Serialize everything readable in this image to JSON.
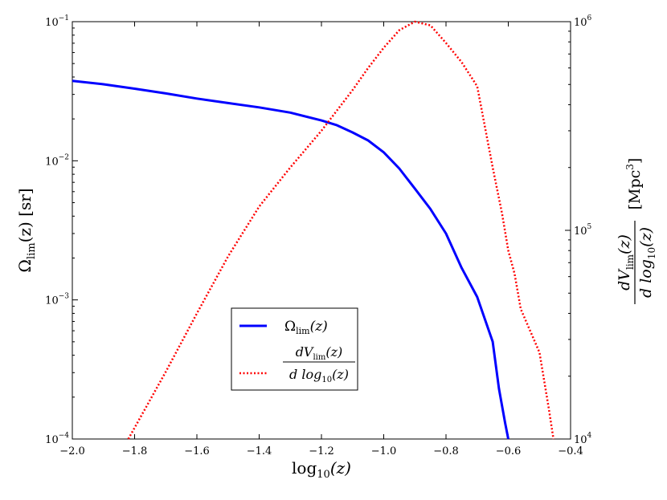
{
  "chart_data": {
    "type": "line",
    "title": "",
    "xlabel": "log₁₀(z)",
    "ylabel_left": "Ω_lim(z) [sr]",
    "ylabel_right": "dV_lim(z) / d log₁₀(z) [Mpc³]",
    "xlim": [
      -2.0,
      -0.4
    ],
    "ylim_left": [
      0.0001,
      0.1
    ],
    "ylim_right": [
      10000,
      1000000
    ],
    "yscale_left": "log",
    "yscale_right": "log",
    "grid": false,
    "x_ticks": [
      {
        "value": -2.0,
        "label": "−2.0"
      },
      {
        "value": -1.8,
        "label": "−1.8"
      },
      {
        "value": -1.6,
        "label": "−1.6"
      },
      {
        "value": -1.4,
        "label": "−1.4"
      },
      {
        "value": -1.2,
        "label": "−1.2"
      },
      {
        "value": -1.0,
        "label": "−1.0"
      },
      {
        "value": -0.8,
        "label": "−0.8"
      },
      {
        "value": -0.6,
        "label": "−0.6"
      },
      {
        "value": -0.4,
        "label": "−0.4"
      }
    ],
    "y_left_ticks": [
      {
        "value": 0.0001,
        "base": "10",
        "exp": "−4"
      },
      {
        "value": 0.001,
        "base": "10",
        "exp": "−3"
      },
      {
        "value": 0.01,
        "base": "10",
        "exp": "−2"
      },
      {
        "value": 0.1,
        "base": "10",
        "exp": "−1"
      }
    ],
    "y_right_ticks": [
      {
        "value": 10000,
        "base": "10",
        "exp": "4"
      },
      {
        "value": 100000,
        "base": "10",
        "exp": "5"
      },
      {
        "value": 1000000,
        "base": "10",
        "exp": "6"
      }
    ],
    "legend_position": "lower-center",
    "series": [
      {
        "name": "Ω_lim(z)",
        "axis": "left",
        "color": "#0000ff",
        "style": "solid",
        "x": [
          -2.0,
          -1.9,
          -1.8,
          -1.7,
          -1.6,
          -1.5,
          -1.4,
          -1.3,
          -1.2,
          -1.15,
          -1.1,
          -1.05,
          -1.0,
          -0.95,
          -0.9,
          -0.85,
          -0.8,
          -0.75,
          -0.7,
          -0.65,
          -0.63,
          -0.61,
          -0.6
        ],
        "y": [
          0.0375,
          0.0355,
          0.033,
          0.0305,
          0.028,
          0.026,
          0.0242,
          0.0222,
          0.0195,
          0.018,
          0.016,
          0.014,
          0.0115,
          0.0088,
          0.0063,
          0.0045,
          0.003,
          0.0017,
          0.00105,
          0.0005,
          0.00023,
          0.00013,
          0.0001
        ]
      },
      {
        "name": "dV_lim(z) / d log₁₀(z)",
        "axis": "right",
        "color": "#ff0000",
        "style": "dotted",
        "x": [
          -1.82,
          -1.7,
          -1.6,
          -1.5,
          -1.4,
          -1.3,
          -1.2,
          -1.1,
          -1.05,
          -1.0,
          -0.95,
          -0.9,
          -0.85,
          -0.8,
          -0.75,
          -0.7,
          -0.65,
          -0.62,
          -0.6,
          -0.58,
          -0.56,
          -0.5,
          -0.47,
          -0.455
        ],
        "y": [
          10000,
          21000,
          40000,
          75000,
          130000,
          200000,
          300000,
          470000,
          600000,
          750000,
          910000,
          1000000,
          960000,
          790000,
          640000,
          490000,
          200000,
          120000,
          80000,
          62000,
          42000,
          26000,
          14000,
          10000
        ]
      }
    ]
  },
  "legend": {
    "entry1_label": "Ω",
    "entry1_sub": "lim",
    "entry1_arg": "(z)",
    "entry2_num": "dV",
    "entry2_num_sub": "lim",
    "entry2_num_arg": "(z)",
    "entry2_den": "d log",
    "entry2_den_sub": "10",
    "entry2_den_arg": "(z)"
  },
  "axis_titles": {
    "x_main": "log",
    "x_sub": "10",
    "x_arg": "(z)",
    "yl_main": "Ω",
    "yl_sub": "lim",
    "yl_arg": "(z) [sr]",
    "yr_num": "dV",
    "yr_num_sub": "lim",
    "yr_num_arg": "(z)",
    "yr_den": "d log",
    "yr_den_sub": "10",
    "yr_den_arg": "(z)",
    "yr_unit": "[Mpc",
    "yr_unit_sup": "3",
    "yr_unit_end": "]"
  }
}
